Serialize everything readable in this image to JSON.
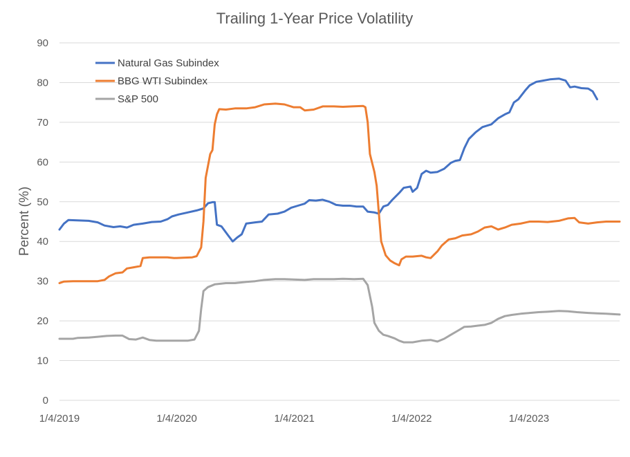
{
  "chart_data": {
    "type": "line",
    "title": "Trailing 1-Year Price Volatility",
    "xlabel": "",
    "ylabel": "Percent (%)",
    "ylim": [
      0,
      90
    ],
    "yticks": [
      0,
      10,
      20,
      30,
      40,
      50,
      60,
      70,
      80,
      90
    ],
    "xlim": [
      "2019-01-04",
      "2023-10-13"
    ],
    "xtick_labels": [
      "1/4/2019",
      "1/4/2020",
      "1/4/2021",
      "1/4/2022",
      "1/4/2023"
    ],
    "xtick_dates": [
      "2019-01-04",
      "2020-01-04",
      "2021-01-04",
      "2022-01-04",
      "2023-01-04"
    ],
    "grid": "horizontal",
    "legend_position": "top-left",
    "series": [
      {
        "name": "Natural Gas Subindex",
        "color": "#4472C4",
        "points": [
          [
            "2019-01-04",
            43.0
          ],
          [
            "2019-01-18",
            44.5
          ],
          [
            "2019-02-01",
            45.4
          ],
          [
            "2019-03-01",
            45.3
          ],
          [
            "2019-04-05",
            45.2
          ],
          [
            "2019-05-03",
            44.8
          ],
          [
            "2019-05-24",
            44.0
          ],
          [
            "2019-06-21",
            43.6
          ],
          [
            "2019-07-12",
            43.8
          ],
          [
            "2019-08-02",
            43.5
          ],
          [
            "2019-08-23",
            44.2
          ],
          [
            "2019-09-20",
            44.5
          ],
          [
            "2019-10-18",
            44.9
          ],
          [
            "2019-11-15",
            45.0
          ],
          [
            "2019-12-06",
            45.6
          ],
          [
            "2019-12-20",
            46.3
          ],
          [
            "2020-01-10",
            46.8
          ],
          [
            "2020-02-07",
            47.3
          ],
          [
            "2020-03-06",
            47.8
          ],
          [
            "2020-03-27",
            48.3
          ],
          [
            "2020-04-10",
            49.6
          ],
          [
            "2020-04-24",
            49.9
          ],
          [
            "2020-05-01",
            49.9
          ],
          [
            "2020-05-08",
            44.2
          ],
          [
            "2020-05-22",
            43.8
          ],
          [
            "2020-06-12",
            41.5
          ],
          [
            "2020-06-26",
            40.0
          ],
          [
            "2020-07-10",
            41.0
          ],
          [
            "2020-07-24",
            41.8
          ],
          [
            "2020-08-07",
            44.5
          ],
          [
            "2020-09-04",
            44.8
          ],
          [
            "2020-09-25",
            45.0
          ],
          [
            "2020-10-16",
            46.8
          ],
          [
            "2020-11-13",
            47.0
          ],
          [
            "2020-12-04",
            47.5
          ],
          [
            "2020-12-25",
            48.5
          ],
          [
            "2021-01-15",
            49.0
          ],
          [
            "2021-02-05",
            49.5
          ],
          [
            "2021-02-19",
            50.4
          ],
          [
            "2021-03-12",
            50.3
          ],
          [
            "2021-04-02",
            50.5
          ],
          [
            "2021-04-23",
            50.0
          ],
          [
            "2021-05-14",
            49.2
          ],
          [
            "2021-06-04",
            49.0
          ],
          [
            "2021-06-25",
            49.0
          ],
          [
            "2021-07-16",
            48.8
          ],
          [
            "2021-08-06",
            48.8
          ],
          [
            "2021-08-20",
            47.5
          ],
          [
            "2021-09-10",
            47.3
          ],
          [
            "2021-09-24",
            47.0
          ],
          [
            "2021-10-08",
            48.8
          ],
          [
            "2021-10-22",
            49.2
          ],
          [
            "2021-11-05",
            50.5
          ],
          [
            "2021-11-26",
            52.2
          ],
          [
            "2021-12-10",
            53.5
          ],
          [
            "2021-12-31",
            53.8
          ],
          [
            "2022-01-07",
            52.5
          ],
          [
            "2022-01-21",
            53.5
          ],
          [
            "2022-02-04",
            57.0
          ],
          [
            "2022-02-18",
            57.8
          ],
          [
            "2022-03-04",
            57.3
          ],
          [
            "2022-03-25",
            57.5
          ],
          [
            "2022-04-15",
            58.3
          ],
          [
            "2022-05-06",
            59.8
          ],
          [
            "2022-05-20",
            60.3
          ],
          [
            "2022-06-03",
            60.5
          ],
          [
            "2022-06-17",
            63.5
          ],
          [
            "2022-07-01",
            65.8
          ],
          [
            "2022-07-22",
            67.5
          ],
          [
            "2022-08-12",
            68.8
          ],
          [
            "2022-09-09",
            69.5
          ],
          [
            "2022-09-30",
            71.0
          ],
          [
            "2022-10-21",
            72.0
          ],
          [
            "2022-11-04",
            72.5
          ],
          [
            "2022-11-18",
            75.0
          ],
          [
            "2022-12-02",
            75.8
          ],
          [
            "2022-12-23",
            78.0
          ],
          [
            "2023-01-06",
            79.3
          ],
          [
            "2023-01-27",
            80.2
          ],
          [
            "2023-02-17",
            80.5
          ],
          [
            "2023-03-10",
            80.8
          ],
          [
            "2023-04-07",
            81.0
          ],
          [
            "2023-04-28",
            80.5
          ],
          [
            "2023-05-12",
            78.8
          ],
          [
            "2023-05-26",
            79.0
          ],
          [
            "2023-06-16",
            78.6
          ],
          [
            "2023-07-07",
            78.5
          ],
          [
            "2023-07-21",
            77.8
          ],
          [
            "2023-08-04",
            75.8
          ]
        ]
      },
      {
        "name": "BBG WTI Subindex",
        "color": "#ED7D31",
        "points": [
          [
            "2019-01-04",
            29.5
          ],
          [
            "2019-01-18",
            29.9
          ],
          [
            "2019-02-15",
            30.0
          ],
          [
            "2019-04-05",
            30.0
          ],
          [
            "2019-05-03",
            30.0
          ],
          [
            "2019-05-24",
            30.3
          ],
          [
            "2019-06-07",
            31.2
          ],
          [
            "2019-06-28",
            32.0
          ],
          [
            "2019-07-19",
            32.2
          ],
          [
            "2019-08-02",
            33.2
          ],
          [
            "2019-08-23",
            33.5
          ],
          [
            "2019-09-13",
            33.8
          ],
          [
            "2019-09-20",
            35.8
          ],
          [
            "2019-10-11",
            36.0
          ],
          [
            "2019-11-08",
            36.0
          ],
          [
            "2019-12-06",
            36.0
          ],
          [
            "2019-12-27",
            35.8
          ],
          [
            "2020-01-24",
            35.9
          ],
          [
            "2020-02-21",
            36.0
          ],
          [
            "2020-03-06",
            36.3
          ],
          [
            "2020-03-20",
            38.5
          ],
          [
            "2020-03-27",
            45.0
          ],
          [
            "2020-04-03",
            56.0
          ],
          [
            "2020-04-10",
            59.0
          ],
          [
            "2020-04-17",
            62.0
          ],
          [
            "2020-04-24",
            63.0
          ],
          [
            "2020-05-01",
            69.5
          ],
          [
            "2020-05-08",
            72.0
          ],
          [
            "2020-05-15",
            73.3
          ],
          [
            "2020-06-05",
            73.2
          ],
          [
            "2020-07-03",
            73.5
          ],
          [
            "2020-08-07",
            73.5
          ],
          [
            "2020-09-04",
            73.8
          ],
          [
            "2020-10-02",
            74.5
          ],
          [
            "2020-11-06",
            74.7
          ],
          [
            "2020-12-04",
            74.5
          ],
          [
            "2021-01-01",
            73.8
          ],
          [
            "2021-01-22",
            73.8
          ],
          [
            "2021-02-05",
            73.0
          ],
          [
            "2021-03-05",
            73.2
          ],
          [
            "2021-04-02",
            74.0
          ],
          [
            "2021-05-07",
            74.0
          ],
          [
            "2021-06-04",
            73.9
          ],
          [
            "2021-07-02",
            74.0
          ],
          [
            "2021-08-06",
            74.1
          ],
          [
            "2021-08-13",
            73.8
          ],
          [
            "2021-08-20",
            70.0
          ],
          [
            "2021-08-27",
            62.0
          ],
          [
            "2021-09-10",
            57.5
          ],
          [
            "2021-09-17",
            54.0
          ],
          [
            "2021-09-24",
            47.0
          ],
          [
            "2021-10-01",
            40.0
          ],
          [
            "2021-10-15",
            36.5
          ],
          [
            "2021-10-29",
            35.2
          ],
          [
            "2021-11-12",
            34.5
          ],
          [
            "2021-11-26",
            34.0
          ],
          [
            "2021-12-03",
            35.5
          ],
          [
            "2021-12-17",
            36.2
          ],
          [
            "2022-01-07",
            36.2
          ],
          [
            "2022-02-04",
            36.4
          ],
          [
            "2022-02-18",
            36.0
          ],
          [
            "2022-03-04",
            35.8
          ],
          [
            "2022-03-25",
            37.5
          ],
          [
            "2022-04-08",
            39.0
          ],
          [
            "2022-04-29",
            40.5
          ],
          [
            "2022-05-20",
            40.8
          ],
          [
            "2022-06-10",
            41.5
          ],
          [
            "2022-07-08",
            41.8
          ],
          [
            "2022-07-29",
            42.5
          ],
          [
            "2022-08-19",
            43.5
          ],
          [
            "2022-09-09",
            43.8
          ],
          [
            "2022-09-30",
            43.0
          ],
          [
            "2022-10-21",
            43.5
          ],
          [
            "2022-11-11",
            44.2
          ],
          [
            "2022-12-09",
            44.5
          ],
          [
            "2023-01-06",
            45.0
          ],
          [
            "2023-02-03",
            45.0
          ],
          [
            "2023-03-03",
            44.9
          ],
          [
            "2023-04-07",
            45.2
          ],
          [
            "2023-05-05",
            45.8
          ],
          [
            "2023-05-26",
            45.9
          ],
          [
            "2023-06-09",
            44.8
          ],
          [
            "2023-07-07",
            44.5
          ],
          [
            "2023-08-04",
            44.8
          ],
          [
            "2023-09-01",
            45.0
          ],
          [
            "2023-10-13",
            45.0
          ]
        ]
      },
      {
        "name": "S&P 500",
        "color": "#A5A5A5",
        "points": [
          [
            "2019-01-04",
            15.5
          ],
          [
            "2019-02-15",
            15.5
          ],
          [
            "2019-03-01",
            15.7
          ],
          [
            "2019-04-05",
            15.8
          ],
          [
            "2019-05-03",
            16.0
          ],
          [
            "2019-05-31",
            16.2
          ],
          [
            "2019-06-28",
            16.3
          ],
          [
            "2019-07-19",
            16.3
          ],
          [
            "2019-08-09",
            15.4
          ],
          [
            "2019-08-30",
            15.3
          ],
          [
            "2019-09-20",
            15.8
          ],
          [
            "2019-10-11",
            15.2
          ],
          [
            "2019-11-01",
            15.0
          ],
          [
            "2019-12-06",
            15.0
          ],
          [
            "2020-01-10",
            15.0
          ],
          [
            "2020-02-07",
            15.0
          ],
          [
            "2020-02-28",
            15.3
          ],
          [
            "2020-03-13",
            17.5
          ],
          [
            "2020-03-20",
            23.0
          ],
          [
            "2020-03-27",
            27.5
          ],
          [
            "2020-04-10",
            28.5
          ],
          [
            "2020-05-01",
            29.2
          ],
          [
            "2020-06-05",
            29.5
          ],
          [
            "2020-07-03",
            29.5
          ],
          [
            "2020-08-07",
            29.8
          ],
          [
            "2020-09-04",
            30.0
          ],
          [
            "2020-10-02",
            30.3
          ],
          [
            "2020-11-06",
            30.5
          ],
          [
            "2020-12-04",
            30.5
          ],
          [
            "2021-01-08",
            30.4
          ],
          [
            "2021-02-05",
            30.3
          ],
          [
            "2021-03-05",
            30.5
          ],
          [
            "2021-04-02",
            30.5
          ],
          [
            "2021-05-07",
            30.5
          ],
          [
            "2021-06-04",
            30.6
          ],
          [
            "2021-07-09",
            30.5
          ],
          [
            "2021-08-06",
            30.6
          ],
          [
            "2021-08-20",
            29.0
          ],
          [
            "2021-09-03",
            23.5
          ],
          [
            "2021-09-10",
            19.5
          ],
          [
            "2021-09-24",
            17.5
          ],
          [
            "2021-10-08",
            16.5
          ],
          [
            "2021-10-22",
            16.2
          ],
          [
            "2021-11-12",
            15.6
          ],
          [
            "2021-11-26",
            15.0
          ],
          [
            "2021-12-10",
            14.6
          ],
          [
            "2022-01-07",
            14.6
          ],
          [
            "2022-02-04",
            15.0
          ],
          [
            "2022-03-04",
            15.2
          ],
          [
            "2022-03-25",
            14.8
          ],
          [
            "2022-04-15",
            15.5
          ],
          [
            "2022-05-06",
            16.5
          ],
          [
            "2022-05-27",
            17.5
          ],
          [
            "2022-06-17",
            18.5
          ],
          [
            "2022-07-08",
            18.6
          ],
          [
            "2022-07-29",
            18.8
          ],
          [
            "2022-08-19",
            19.0
          ],
          [
            "2022-09-09",
            19.5
          ],
          [
            "2022-09-30",
            20.5
          ],
          [
            "2022-10-21",
            21.2
          ],
          [
            "2022-11-11",
            21.5
          ],
          [
            "2022-12-09",
            21.8
          ],
          [
            "2023-01-06",
            22.0
          ],
          [
            "2023-02-03",
            22.2
          ],
          [
            "2023-03-03",
            22.3
          ],
          [
            "2023-04-07",
            22.5
          ],
          [
            "2023-05-05",
            22.4
          ],
          [
            "2023-06-02",
            22.2
          ],
          [
            "2023-07-07",
            22.0
          ],
          [
            "2023-08-04",
            21.9
          ],
          [
            "2023-09-01",
            21.8
          ],
          [
            "2023-10-13",
            21.6
          ]
        ]
      }
    ]
  }
}
